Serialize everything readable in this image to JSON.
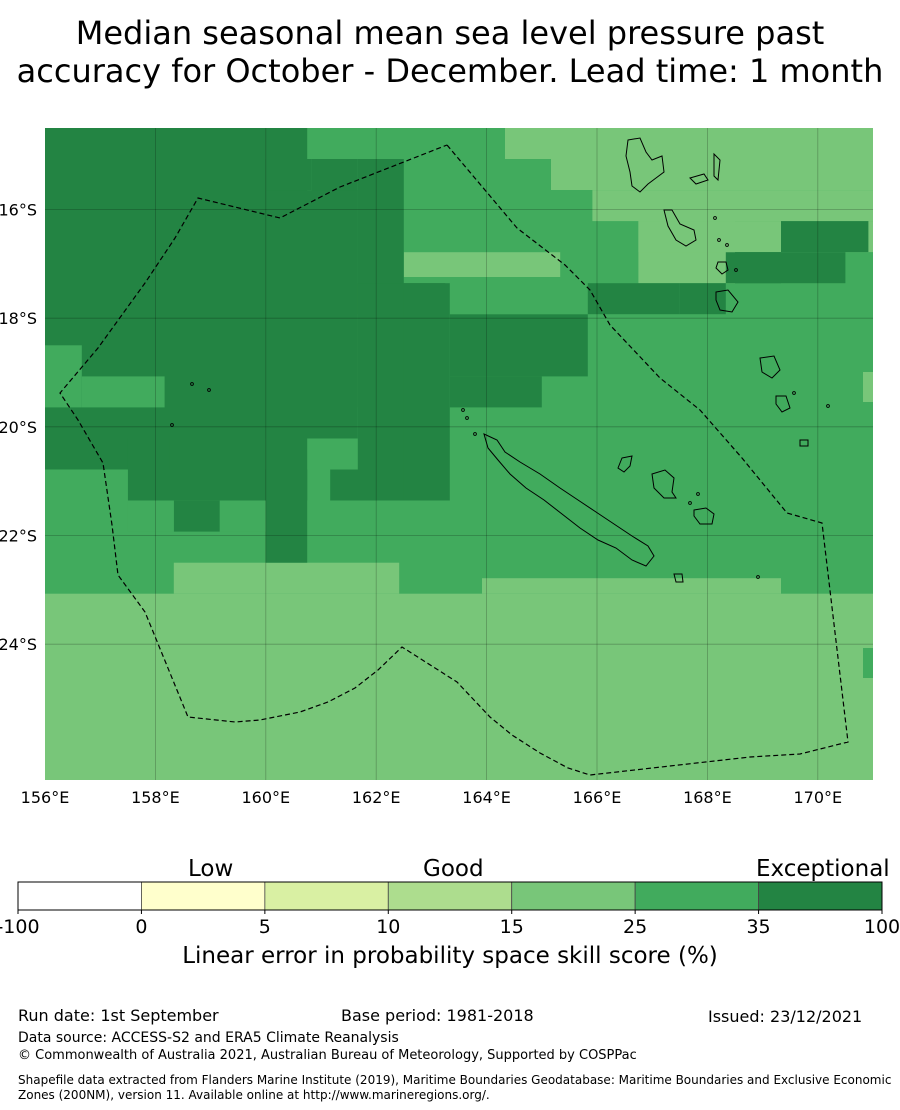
{
  "title": {
    "line1": "Median seasonal mean sea level pressure past",
    "line2": "accuracy for October - December. Lead time: 1 month"
  },
  "map": {
    "lon_range": [
      156,
      171
    ],
    "lat_range": [
      -26.5,
      -14.5
    ],
    "lon_ticks": [
      "156°E",
      "158°E",
      "160°E",
      "162°E",
      "164°E",
      "166°E",
      "168°E",
      "170°E"
    ],
    "lat_ticks": [
      "16°S",
      "18°S",
      "20°S",
      "22°S",
      "24°S"
    ],
    "gridlines": true,
    "colors": {
      "level_15_25": "#78c679",
      "level_25_35": "#41ab5d",
      "level_35_100": "#238443"
    },
    "boundary_name": "New Caledonia EEZ",
    "islands": [
      "New Caledonia",
      "Vanuatu",
      "Loyalty Islands"
    ]
  },
  "colorbar": {
    "headings": [
      "Low",
      "Good",
      "Exceptional"
    ],
    "ticks": [
      "-100",
      "0",
      "5",
      "10",
      "15",
      "25",
      "35",
      "100"
    ],
    "colors": [
      "#ffffff",
      "#ffffcc",
      "#d9f0a3",
      "#addd8e",
      "#78c679",
      "#41ab5d",
      "#238443"
    ],
    "label": "Linear error in probability space skill score (%)"
  },
  "footer": {
    "run_date": "Run date: 1st September",
    "base_period": "Base period: 1981-2018",
    "issued": "Issued: 23/12/2021",
    "data_source": "Data source: ACCESS-S2 and ERA5 Climate Reanalysis",
    "copyright": "© Commonwealth of Australia 2021, Australian Bureau of Meteorology, Supported by COSPPac",
    "shapefile": "Shapefile data extracted from Flanders Marine Institute (2019), Maritime Boundaries Geodatabase: Maritime Boundaries and Exclusive Economic Zones (200NM), version 11. Available online at http://www.marineregions.org/."
  }
}
